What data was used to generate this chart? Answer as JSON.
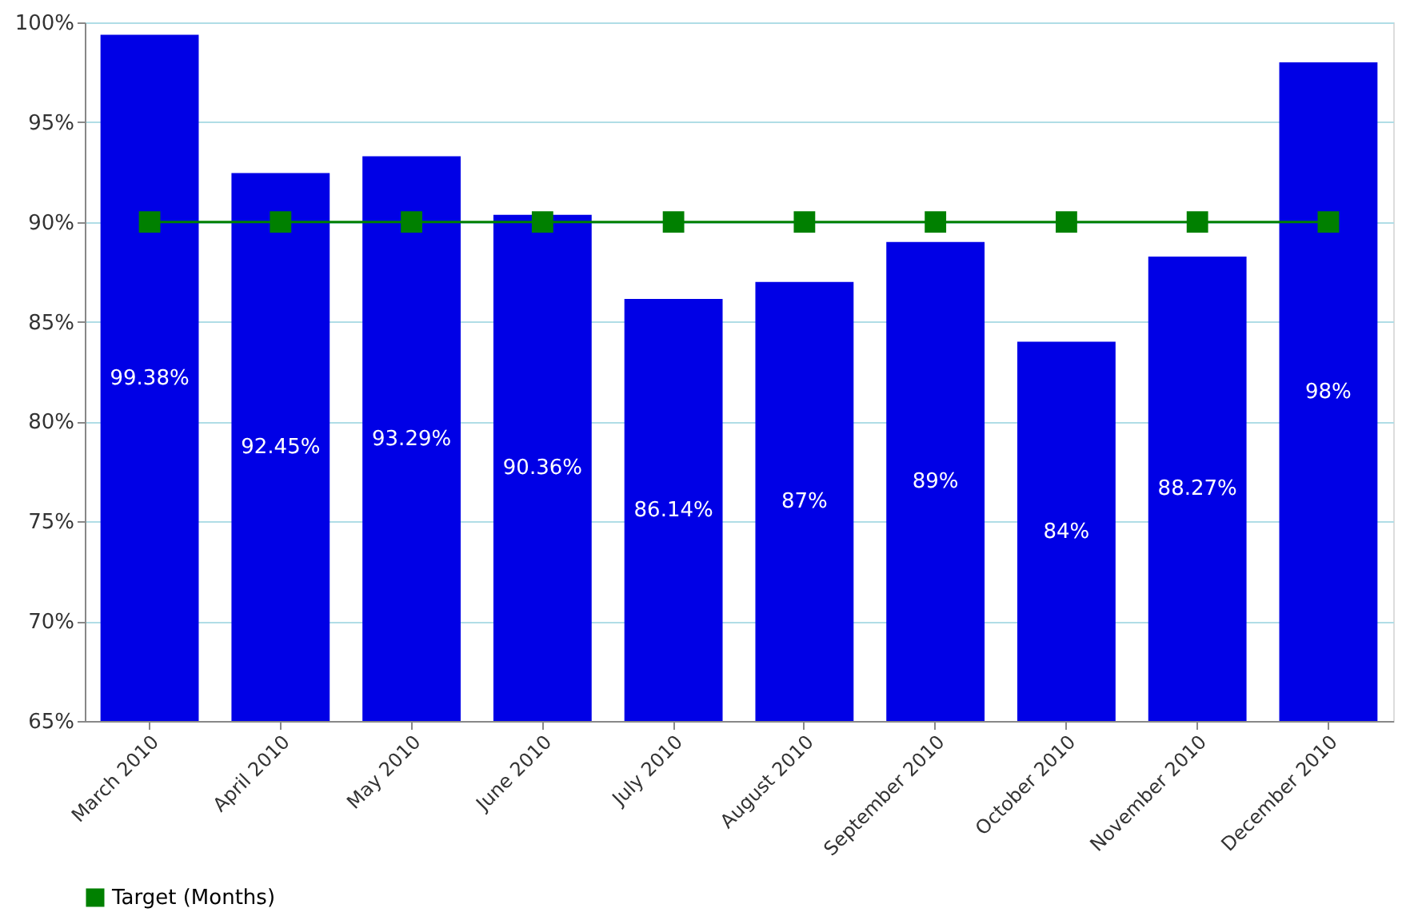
{
  "chart_data": {
    "type": "bar",
    "categories": [
      "March 2010",
      "April 2010",
      "May 2010",
      "June 2010",
      "July 2010",
      "August 2010",
      "September 2010",
      "October 2010",
      "November 2010",
      "December 2010"
    ],
    "series": [
      {
        "color": "#0000e6",
        "values": [
          99.38,
          92.45,
          93.29,
          90.36,
          86.14,
          87,
          89,
          84,
          88.27,
          98
        ],
        "value_labels": [
          "99.38%",
          "92.45%",
          "93.29%",
          "90.36%",
          "86.14%",
          "87%",
          "89%",
          "84%",
          "88.27%",
          "98%"
        ]
      },
      {
        "type": "line",
        "name": "Target (Months)",
        "color": "#008000",
        "marker": "square",
        "values": [
          90,
          90,
          90,
          90,
          90,
          90,
          90,
          90,
          90,
          90
        ]
      }
    ],
    "ylim": [
      65,
      100
    ],
    "yticks": [
      {
        "value": 65,
        "label": "65%"
      },
      {
        "value": 70,
        "label": "70%"
      },
      {
        "value": 75,
        "label": "75%"
      },
      {
        "value": 80,
        "label": "80%"
      },
      {
        "value": 85,
        "label": "85%"
      },
      {
        "value": 90,
        "label": "90%"
      },
      {
        "value": 95,
        "label": "95%"
      },
      {
        "value": 100,
        "label": "100%"
      }
    ],
    "grid": "y",
    "legend": "bottom"
  }
}
